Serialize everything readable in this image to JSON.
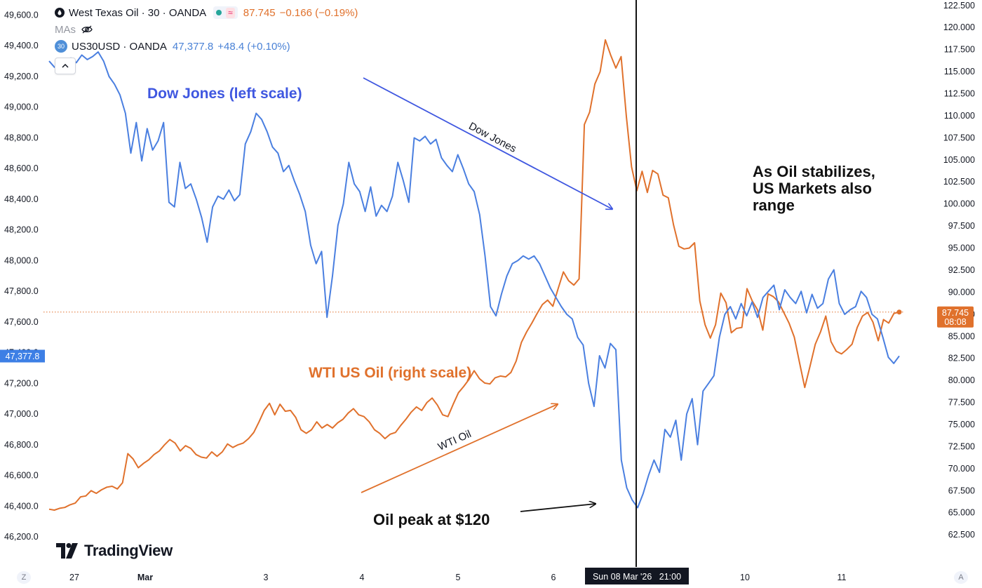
{
  "legend": {
    "oil": {
      "title": "West Texas Oil · 30 · OANDA",
      "approx_symbol": "≈",
      "price": "87.745",
      "change": "−0.166 (−0.19%)"
    },
    "mas_label": "MAs",
    "us30": {
      "badge": "30",
      "title": "US30USD · OANDA",
      "price": "47,377.8",
      "change": "+48.4 (+0.10%)"
    }
  },
  "brand": "TradingView",
  "corner_left": "Z",
  "corner_right": "A",
  "chart_data": {
    "type": "line",
    "time_axis": {
      "labels": [
        "27",
        "Mar",
        "3",
        "4",
        "5",
        "6",
        "10",
        "11"
      ],
      "crosshair_label": "Sun 08 Mar '26   21:00"
    },
    "left_axis": {
      "ticks": [
        "46,200.0",
        "46,400.0",
        "46,600.0",
        "46,800.0",
        "47,000.0",
        "47,200.0",
        "47,400.0",
        "47,600.0",
        "47,800.0",
        "48,000.0",
        "48,200.0",
        "48,400.0",
        "48,600.0",
        "48,800.0",
        "49,000.0",
        "49,200.0",
        "49,400.0",
        "49,600.0"
      ],
      "range": [
        46150,
        49680
      ],
      "last_price_label": "47,377.8"
    },
    "right_axis": {
      "ticks": [
        "62.500",
        "65.000",
        "67.500",
        "70.000",
        "72.500",
        "75.000",
        "77.500",
        "80.000",
        "82.500",
        "85.000",
        "87.500",
        "90.000",
        "92.500",
        "95.000",
        "97.500",
        "100.000",
        "102.500",
        "105.000",
        "107.500",
        "110.000",
        "112.500",
        "115.000",
        "117.500",
        "120.000",
        "122.500"
      ],
      "range": [
        61.4,
        122.8
      ],
      "last_price_label": "87.745",
      "countdown": "08:08"
    },
    "price_line": 87.745,
    "series": [
      {
        "name": "US30USD · OANDA",
        "scale": "left",
        "color": "#4a7fe0",
        "values": [
          49300,
          49260,
          49240,
          49270,
          49320,
          49290,
          49340,
          49310,
          49330,
          49360,
          49300,
          49200,
          49150,
          49080,
          48960,
          48700,
          48900,
          48650,
          48860,
          48720,
          48780,
          48900,
          48380,
          48350,
          48640,
          48470,
          48500,
          48400,
          48280,
          48120,
          48350,
          48420,
          48400,
          48460,
          48390,
          48430,
          48760,
          48840,
          48960,
          48920,
          48840,
          48740,
          48700,
          48580,
          48620,
          48520,
          48430,
          48320,
          48100,
          47980,
          48060,
          47630,
          47900,
          48230,
          48370,
          48640,
          48500,
          48450,
          48320,
          48480,
          48290,
          48360,
          48320,
          48420,
          48640,
          48520,
          48380,
          48800,
          48780,
          48810,
          48760,
          48790,
          48670,
          48620,
          48580,
          48690,
          48600,
          48500,
          48450,
          48300,
          48030,
          47700,
          47640,
          47780,
          47900,
          47980,
          48000,
          48030,
          48010,
          48030,
          47980,
          47900,
          47820,
          47760,
          47700,
          47650,
          47620,
          47500,
          47450,
          47200,
          47050,
          47380,
          47300,
          47460,
          47420,
          46700,
          46520,
          46440,
          46390,
          46480,
          46600,
          46700,
          46620,
          46900,
          46850,
          46960,
          46700,
          47000,
          47100,
          46800,
          47150,
          47200,
          47250,
          47500,
          47650,
          47700,
          47620,
          47720,
          47640,
          47730,
          47630,
          47760,
          47800,
          47840,
          47680,
          47810,
          47760,
          47720,
          47800,
          47660,
          47780,
          47690,
          47720,
          47880,
          47940,
          47720,
          47650,
          47680,
          47700,
          47800,
          47760,
          47650,
          47620,
          47500,
          47370,
          47330,
          47378
        ]
      },
      {
        "name": "West Texas Oil · 30 · OANDA",
        "scale": "right",
        "color": "#e0712c",
        "values": [
          65.4,
          65.3,
          65.5,
          65.6,
          65.9,
          66.1,
          66.8,
          66.9,
          67.5,
          67.2,
          67.6,
          67.9,
          68.0,
          67.7,
          68.4,
          71.7,
          71.1,
          70.1,
          70.6,
          71.0,
          71.6,
          72.0,
          72.7,
          73.3,
          72.9,
          72.0,
          72.6,
          72.3,
          71.6,
          71.3,
          71.2,
          71.9,
          71.4,
          71.9,
          72.8,
          72.4,
          72.7,
          72.9,
          73.4,
          74.1,
          75.3,
          76.6,
          77.4,
          76.1,
          77.3,
          76.5,
          76.6,
          75.8,
          74.4,
          74.0,
          74.4,
          75.3,
          74.6,
          75.0,
          74.6,
          75.2,
          75.6,
          76.3,
          76.8,
          76.1,
          75.9,
          75.3,
          74.4,
          74.0,
          73.4,
          73.9,
          74.1,
          74.9,
          75.6,
          76.4,
          77.0,
          76.6,
          77.5,
          78.0,
          77.2,
          76.1,
          75.9,
          77.3,
          78.6,
          79.3,
          80.1,
          81.1,
          80.2,
          79.7,
          79.6,
          80.3,
          80.5,
          80.4,
          80.9,
          82.2,
          84.3,
          85.5,
          86.5,
          87.6,
          88.6,
          89.1,
          88.4,
          90.4,
          92.3,
          91.3,
          90.8,
          91.5,
          109.0,
          110.4,
          113.6,
          115.0,
          118.6,
          116.9,
          115.4,
          116.7,
          109.9,
          104.2,
          101.5,
          103.7,
          101.3,
          103.8,
          103.4,
          101.0,
          100.7,
          97.6,
          95.2,
          94.9,
          95.0,
          95.6,
          89.0,
          86.3,
          84.8,
          86.3,
          89.9,
          88.8,
          85.4,
          85.9,
          86.0,
          90.4,
          89.0,
          88.0,
          85.7,
          89.8,
          89.5,
          88.9,
          87.7,
          86.5,
          84.9,
          82.0,
          79.2,
          81.6,
          84.1,
          85.5,
          87.3,
          84.4,
          83.3,
          83.0,
          83.5,
          84.1,
          86.0,
          87.3,
          87.7,
          86.6,
          84.5,
          86.9,
          86.5,
          87.6,
          87.745
        ]
      }
    ],
    "annotations": [
      {
        "id": "dow-label",
        "text": "Dow Jones (left scale)"
      },
      {
        "id": "wti-label",
        "text": "WTI US Oil (right scale)"
      },
      {
        "id": "dow-arrow",
        "text": "Dow Jones"
      },
      {
        "id": "wti-arrow",
        "text": "WTI Oil"
      },
      {
        "id": "peak",
        "text": "Oil peak at $120"
      },
      {
        "id": "stabilize",
        "lines": [
          "As Oil stabilizes,",
          "US Markets also",
          "range"
        ]
      }
    ]
  }
}
